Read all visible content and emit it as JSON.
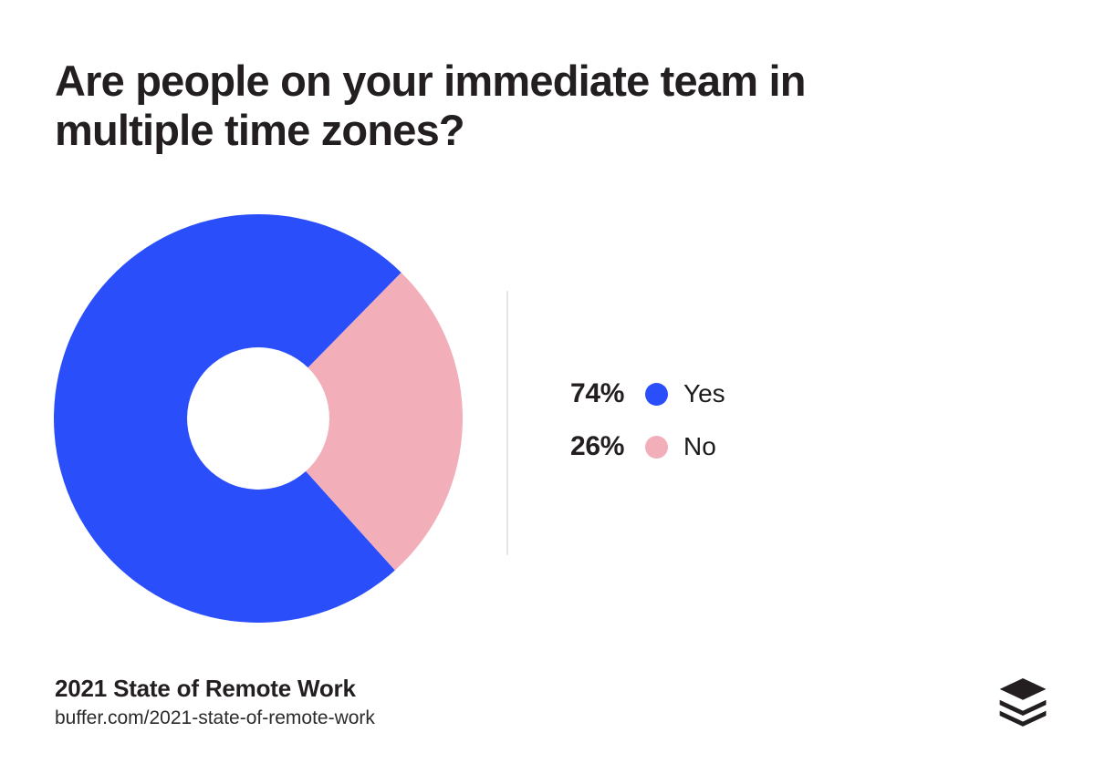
{
  "title": "Are people on your immediate team in multiple time zones?",
  "chart_data": {
    "type": "pie",
    "subtype": "donut",
    "title": "Are people on your immediate team in multiple time zones?",
    "series": [
      {
        "label": "Yes",
        "value": 74,
        "percent_label": "74%",
        "color": "#2B4EFB"
      },
      {
        "label": "No",
        "value": 26,
        "percent_label": "26%",
        "color": "#F2AFBA"
      }
    ],
    "start_angle_deg": 138,
    "donut_hole_ratio": 0.348,
    "legend_position": "right",
    "legend_divider": true
  },
  "footer": {
    "source_title": "2021 State of Remote Work",
    "source_url": "buffer.com/2021-state-of-remote-work"
  },
  "branding": {
    "logo": "buffer-logo",
    "logo_color": "#231F20"
  },
  "colors": {
    "background": "#FFFFFF",
    "text": "#231F20",
    "divider": "#E5E5E5"
  }
}
